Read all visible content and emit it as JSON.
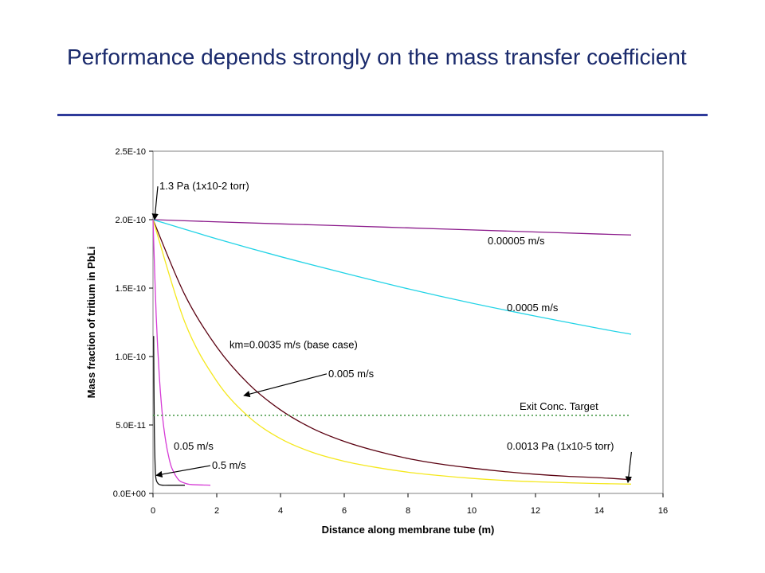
{
  "slide": {
    "title": "Performance depends strongly on the mass transfer coefficient"
  },
  "chart_data": {
    "type": "line",
    "xlabel": "Distance along membrane tube (m)",
    "ylabel": "Mass fraction of tritium in PbLi",
    "xlim": [
      0,
      16
    ],
    "ylim": [
      0,
      2.5e-10
    ],
    "x_ticks": [
      "0",
      "2",
      "4",
      "6",
      "8",
      "10",
      "12",
      "14",
      "16"
    ],
    "y_ticks": [
      "0.0E+00",
      "5.0E-11",
      "1.0E-10",
      "1.5E-10",
      "2.0E-10",
      "2.5E-10"
    ],
    "grid": false,
    "series": [
      {
        "name": "0.00005 m/s",
        "color": "#8b1a8b",
        "x": [
          0,
          2,
          4,
          6,
          8,
          10,
          12,
          14,
          15
        ],
        "y": [
          2e-10,
          1.984e-10,
          1.969e-10,
          1.955e-10,
          1.94e-10,
          1.925e-10,
          1.91e-10,
          1.895e-10,
          1.888e-10
        ]
      },
      {
        "name": "0.0005 m/s",
        "color": "#22d3e6",
        "x": [
          0,
          2,
          4,
          6,
          8,
          10,
          12,
          14,
          15
        ],
        "y": [
          2e-10,
          1.86e-10,
          1.73e-10,
          1.61e-10,
          1.495e-10,
          1.39e-10,
          1.295e-10,
          1.205e-10,
          1.163e-10
        ]
      },
      {
        "name": "km=0.0035 m/s (base case)",
        "color": "#5a0010",
        "x": [
          0,
          1,
          2,
          3,
          4,
          5,
          6,
          7,
          8,
          9,
          10,
          11,
          12,
          13,
          14,
          15
        ],
        "y": [
          2e-10,
          1.45e-10,
          1.07e-10,
          8e-11,
          6.1e-11,
          4.75e-11,
          3.8e-11,
          3.1e-11,
          2.55e-11,
          2.15e-11,
          1.85e-11,
          1.6e-11,
          1.4e-11,
          1.25e-11,
          1.15e-11,
          1e-11
        ]
      },
      {
        "name": "0.005 m/s",
        "color": "#f5e81e",
        "x": [
          0,
          1,
          2,
          3,
          4,
          5,
          6,
          7,
          8,
          9,
          10,
          11,
          12,
          13,
          14,
          15
        ],
        "y": [
          2e-10,
          1.25e-10,
          8.2e-11,
          5.6e-11,
          4e-11,
          3e-11,
          2.35e-11,
          1.9e-11,
          1.55e-11,
          1.3e-11,
          1.1e-11,
          9.5e-12,
          8.5e-12,
          7.8e-12,
          7.2e-12,
          6.8e-12
        ]
      },
      {
        "name": "0.05 m/s",
        "color": "#d63cd6",
        "x": [
          0,
          0.1,
          0.2,
          0.3,
          0.4,
          0.5,
          0.6,
          0.8,
          1.0,
          1.2,
          1.8
        ],
        "y": [
          2e-10,
          1.3e-10,
          8.5e-11,
          5.6e-11,
          3.8e-11,
          2.6e-11,
          1.8e-11,
          1e-11,
          7.5e-12,
          6.5e-12,
          6e-12
        ]
      },
      {
        "name": "0.5 m/s",
        "color": "#111111",
        "x": [
          0.02,
          0.04,
          0.07,
          0.1,
          0.15,
          0.2,
          0.3,
          0.5,
          1.0
        ],
        "y": [
          1.15e-10,
          5e-11,
          1.8e-11,
          1e-11,
          7.5e-12,
          6.5e-12,
          6e-12,
          6e-12,
          6e-12
        ]
      },
      {
        "name": "Exit Conc. Target",
        "color": "#2e8b2e",
        "dash": true,
        "x": [
          0,
          15
        ],
        "y": [
          5.7e-11,
          5.7e-11
        ]
      }
    ],
    "annotations": [
      {
        "text": "1.3 Pa (1x10-2 torr)",
        "x": 0.2,
        "y": 2.22e-10,
        "arrow_to": [
          0.05,
          2e-10
        ]
      },
      {
        "text": "0.00005 m/s",
        "x": 10.5,
        "y": 1.82e-10
      },
      {
        "text": "0.0005 m/s",
        "x": 11.1,
        "y": 1.33e-10
      },
      {
        "text": "km=0.0035 m/s (base case)",
        "x": 2.4,
        "y": 1.06e-10
      },
      {
        "text": "0.005 m/s",
        "x": 5.5,
        "y": 8.5e-11,
        "arrow_to": [
          2.85,
          7.15e-11
        ]
      },
      {
        "text": "Exit Conc. Target",
        "x": 11.5,
        "y": 6.1e-11
      },
      {
        "text": "0.05 m/s",
        "x": 0.65,
        "y": 3.2e-11
      },
      {
        "text": "0.5 m/s",
        "x": 1.85,
        "y": 1.8e-11,
        "arrow_to": [
          0.1,
          1.32e-11
        ]
      },
      {
        "text": "0.0013 Pa (1x10-5 torr)",
        "x": 11.1,
        "y": 3.2e-11,
        "arrow_to": [
          14.9,
          8e-12
        ]
      }
    ]
  }
}
